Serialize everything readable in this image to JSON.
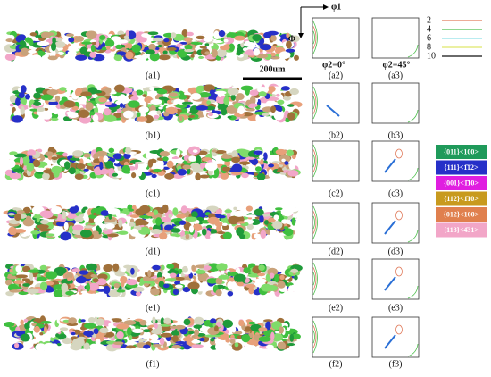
{
  "scale_bar": "200um",
  "axes": {
    "phi1": "φ1",
    "Phi": "Φ"
  },
  "section_titles": [
    "φ2=0°",
    "φ2=45°"
  ],
  "contour_legend": [
    {
      "level": "2",
      "color": "#e07a5a"
    },
    {
      "level": "4",
      "color": "#4cbf4c"
    },
    {
      "level": "6",
      "color": "#8fe0e8"
    },
    {
      "level": "8",
      "color": "#dfe86a"
    },
    {
      "level": "10",
      "color": "#111111"
    }
  ],
  "texture_legend": [
    {
      "label": "{011}<100>",
      "color": "#1f9a5a"
    },
    {
      "label": "{111}<1̄12>",
      "color": "#2630c8"
    },
    {
      "label": "{001}<1̄10>",
      "color": "#e01ee0"
    },
    {
      "label": "{112}<1̄10>",
      "color": "#c89a1e"
    },
    {
      "label": "{012}<100>",
      "color": "#e0804e"
    },
    {
      "label": "{113}<4̄31>",
      "color": "#f2a6c8"
    }
  ],
  "rows": [
    {
      "map_label": "(a1)",
      "odf_labels": [
        "(a2)",
        "(a3)"
      ]
    },
    {
      "map_label": "(b1)",
      "odf_labels": [
        "(b2)",
        "(b3)"
      ]
    },
    {
      "map_label": "(c1)",
      "odf_labels": [
        "(c2)",
        "(c3)"
      ]
    },
    {
      "map_label": "(d1)",
      "odf_labels": [
        "(d2)",
        "(d3)"
      ]
    },
    {
      "map_label": "(e1)",
      "odf_labels": [
        "(e2)",
        "(e3)"
      ]
    },
    {
      "map_label": "(f1)",
      "odf_labels": [
        "(f2)",
        "(f3)"
      ]
    }
  ]
}
